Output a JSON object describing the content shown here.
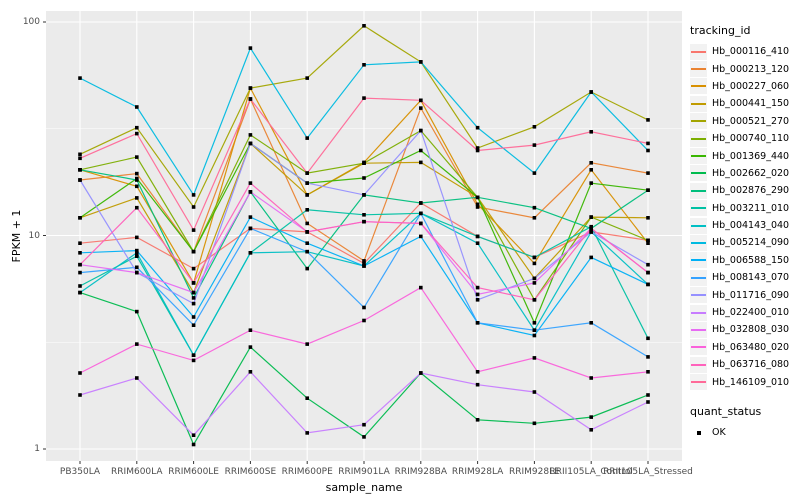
{
  "chart_data": {
    "type": "line",
    "title": "",
    "xlabel": "sample_name",
    "ylabel": "FPKM + 1",
    "y_scale": "log10",
    "ylim": [
      1,
      100
    ],
    "y_ticks": [
      1,
      10,
      100
    ],
    "y_minor_ticks": [
      3.162,
      31.62
    ],
    "grid": true,
    "panel_background": "#EBEBEB",
    "grid_color": "#FFFFFF",
    "point_color": "#000000",
    "legend_position": "right",
    "categories": [
      "PB350LA",
      "RRIM600LA",
      "RRIM600LE",
      "RRIM600SE",
      "RRIM600PE",
      "RRIM901LA",
      "RRIM928BA",
      "RRIM928LA",
      "RRIM928LE",
      "RRII105LA_Control",
      "RRII105LA_Stressed"
    ],
    "series": [
      {
        "name": "Hb_000116_410",
        "color": "#F8766D",
        "values": [
          9.2,
          9.8,
          7.0,
          10.8,
          10.4,
          7.4,
          14.2,
          9.9,
          7.9,
          10.4,
          9.5
        ]
      },
      {
        "name": "Hb_000213_120",
        "color": "#EA8331",
        "values": [
          18.2,
          19.5,
          8.4,
          43.6,
          11.4,
          7.6,
          39.5,
          13.6,
          12.1,
          21.9,
          19.6
        ]
      },
      {
        "name": "Hb_000227_060",
        "color": "#D89000",
        "values": [
          20.3,
          17.0,
          6.0,
          49.0,
          15.5,
          22.0,
          43.0,
          14.0,
          7.4,
          20.3,
          9.2
        ]
      },
      {
        "name": "Hb_000441_150",
        "color": "#C09B00",
        "values": [
          12.1,
          15.0,
          5.4,
          27.0,
          15.5,
          21.8,
          22.0,
          15.1,
          6.3,
          12.2,
          12.1
        ]
      },
      {
        "name": "Hb_000521_270",
        "color": "#A3A500",
        "values": [
          24.0,
          32.0,
          13.6,
          49.0,
          54.6,
          96.0,
          65.0,
          25.7,
          32.3,
          47.0,
          34.8
        ]
      },
      {
        "name": "Hb_000740_110",
        "color": "#7CAE00",
        "values": [
          20.3,
          23.3,
          8.4,
          29.6,
          19.6,
          21.8,
          31.0,
          15.1,
          5.0,
          12.2,
          9.5
        ]
      },
      {
        "name": "Hb_001369_440",
        "color": "#39B600",
        "values": [
          12.1,
          18.5,
          8.4,
          27.0,
          17.6,
          18.6,
          25.0,
          15.1,
          3.9,
          17.6,
          16.3
        ]
      },
      {
        "name": "Hb_002662_020",
        "color": "#00BB4E",
        "values": [
          5.4,
          4.4,
          1.05,
          3.0,
          1.73,
          1.14,
          2.27,
          1.37,
          1.32,
          1.41,
          1.79
        ]
      },
      {
        "name": "Hb_002876_290",
        "color": "#00BF7D",
        "values": [
          20.3,
          18.2,
          5.1,
          16.0,
          7.0,
          15.5,
          14.2,
          15.1,
          13.5,
          10.8,
          16.3
        ]
      },
      {
        "name": "Hb_003211_010",
        "color": "#00C1A3",
        "values": [
          5.8,
          8.0,
          2.75,
          8.3,
          13.2,
          12.5,
          12.7,
          9.9,
          7.9,
          11.0,
          3.3
        ]
      },
      {
        "name": "Hb_004143_040",
        "color": "#00BFC4",
        "values": [
          5.4,
          8.3,
          2.75,
          8.3,
          8.4,
          7.2,
          12.7,
          9.2,
          3.6,
          10.4,
          5.9
        ]
      },
      {
        "name": "Hb_005214_090",
        "color": "#00BAE0",
        "values": [
          54.6,
          40.0,
          15.5,
          75.5,
          28.6,
          63.0,
          65.0,
          32.0,
          19.6,
          47.0,
          25.0
        ]
      },
      {
        "name": "Hb_006588_150",
        "color": "#00B0F6",
        "values": [
          8.3,
          8.5,
          4.15,
          12.2,
          9.2,
          7.2,
          9.9,
          3.9,
          3.4,
          7.9,
          5.9
        ]
      },
      {
        "name": "Hb_008143_070",
        "color": "#35A2FF",
        "values": [
          6.7,
          7.1,
          3.8,
          10.8,
          8.4,
          4.6,
          12.7,
          3.9,
          3.6,
          3.9,
          2.7
        ]
      },
      {
        "name": "Hb_011716_090",
        "color": "#9590FF",
        "values": [
          18.2,
          6.7,
          4.8,
          27.0,
          17.6,
          15.5,
          31.0,
          5.0,
          6.3,
          10.4,
          7.3
        ]
      },
      {
        "name": "Hb_022400_010",
        "color": "#C77CFF",
        "values": [
          1.79,
          2.15,
          1.16,
          2.3,
          1.19,
          1.3,
          2.27,
          2.0,
          1.85,
          1.23,
          1.66
        ]
      },
      {
        "name": "Hb_032808_030",
        "color": "#E76BF3",
        "values": [
          7.3,
          6.7,
          5.4,
          16.0,
          10.4,
          11.6,
          11.4,
          5.3,
          6.0,
          10.8,
          6.7
        ]
      },
      {
        "name": "Hb_063480_020",
        "color": "#FA62DB",
        "values": [
          2.27,
          3.1,
          2.6,
          3.6,
          3.1,
          4.0,
          5.7,
          2.3,
          2.67,
          2.15,
          2.3
        ]
      },
      {
        "name": "Hb_063716_080",
        "color": "#FF62BC",
        "values": [
          7.3,
          13.5,
          6.0,
          17.6,
          10.4,
          11.6,
          11.4,
          5.7,
          5.0,
          10.8,
          6.7
        ]
      },
      {
        "name": "Hb_146109_010",
        "color": "#FF6A98",
        "values": [
          23.0,
          30.0,
          10.6,
          43.6,
          19.6,
          44.0,
          43.0,
          25.0,
          26.5,
          30.6,
          27.0
        ]
      }
    ],
    "legend_title": "tracking_id",
    "legend2_title": "quant_status",
    "legend2_items": [
      {
        "label": "OK",
        "shape": "square",
        "color": "#000000"
      }
    ]
  },
  "axes": {
    "x_title": "sample_name",
    "y_title": "FPKM + 1",
    "y_tick_labels": [
      "100",
      "10",
      "1"
    ],
    "x_tick_labels": [
      "PB350LA",
      "RRIM600LA",
      "RRIM600LE",
      "RRIM600SE",
      "RRIM600PE",
      "RRIM901LA",
      "RRIM928BA",
      "RRIM928LA",
      "RRIM928LE",
      "RRII105LA_Control",
      "RRII105LA_Stressed"
    ]
  },
  "legend": {
    "title": "tracking_id",
    "quant_title": "quant_status",
    "quant_ok_label": "OK"
  }
}
